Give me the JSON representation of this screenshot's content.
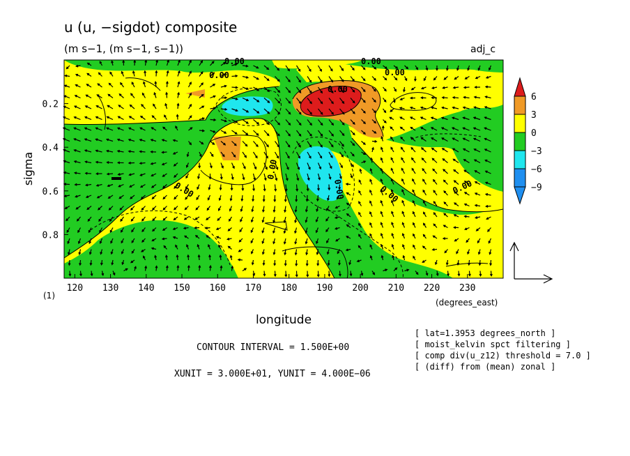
{
  "chart_data": {
    "type": "heatmap",
    "title": "u (u, −sigdot) composite",
    "subtitle": "(m s−1, (m s−1, s−1))",
    "corner_label": "adj_c",
    "xlabel": "longitude",
    "xunits": "(degrees_east)",
    "ylabel": "sigma",
    "axis_note": "(1)",
    "xlim": [
      117,
      240
    ],
    "ylim": [
      0,
      1
    ],
    "x_ticks": [
      120,
      130,
      140,
      150,
      160,
      170,
      180,
      190,
      200,
      210,
      220,
      230
    ],
    "y_ticks": [
      0.2,
      0.4,
      0.6,
      0.8
    ],
    "y_tick_labels": [
      "0.2",
      "0.4",
      "0.6",
      "0.8"
    ],
    "legend": {
      "placement": "right",
      "levels": [
        "6",
        "3",
        "0",
        "−3",
        "−6",
        "−9"
      ],
      "colors": [
        "#dd1c1c",
        "#f09a26",
        "#ffff00",
        "#22cc22",
        "#1fe6ee",
        "#1f8ff0"
      ]
    },
    "contour_labels": [
      "0.00",
      "0.00",
      "0.00",
      "0.00",
      "0.00",
      "0.00",
      "0.00",
      "0.00",
      "0.00",
      "0.00"
    ],
    "contour_interval_text": "CONTOUR INTERVAL = 1.500E+00",
    "vector_units_text": "XUNIT = 3.000E+01, YUNIT = 4.000E−06",
    "notes": [
      "[ lat=1.3953 degrees_north ]",
      "[ moist_kelvin spct filtering ]",
      "[ comp div(u_z12) threshold = 7.0 ]",
      "[ (diff) from (mean) zonal ]"
    ],
    "regions": {
      "background": "#22cc22",
      "positive": "#ffff00",
      "moderate_positive": "#f09a26",
      "strong_positive": "#dd1c1c",
      "negative": "#22cc22",
      "moderate_negative": "#1fe6ee"
    },
    "features": [
      {
        "value": "strong_positive",
        "lon": 190,
        "sigma": 0.22
      },
      {
        "value": "moderate_positive",
        "lon": 192,
        "sigma": 0.26
      },
      {
        "value": "moderate_positive",
        "lon": 163,
        "sigma": 0.4
      },
      {
        "value": "moderate_negative",
        "lon": 168,
        "sigma": 0.22
      },
      {
        "value": "moderate_negative",
        "lon": 188,
        "sigma": 0.55
      }
    ]
  }
}
